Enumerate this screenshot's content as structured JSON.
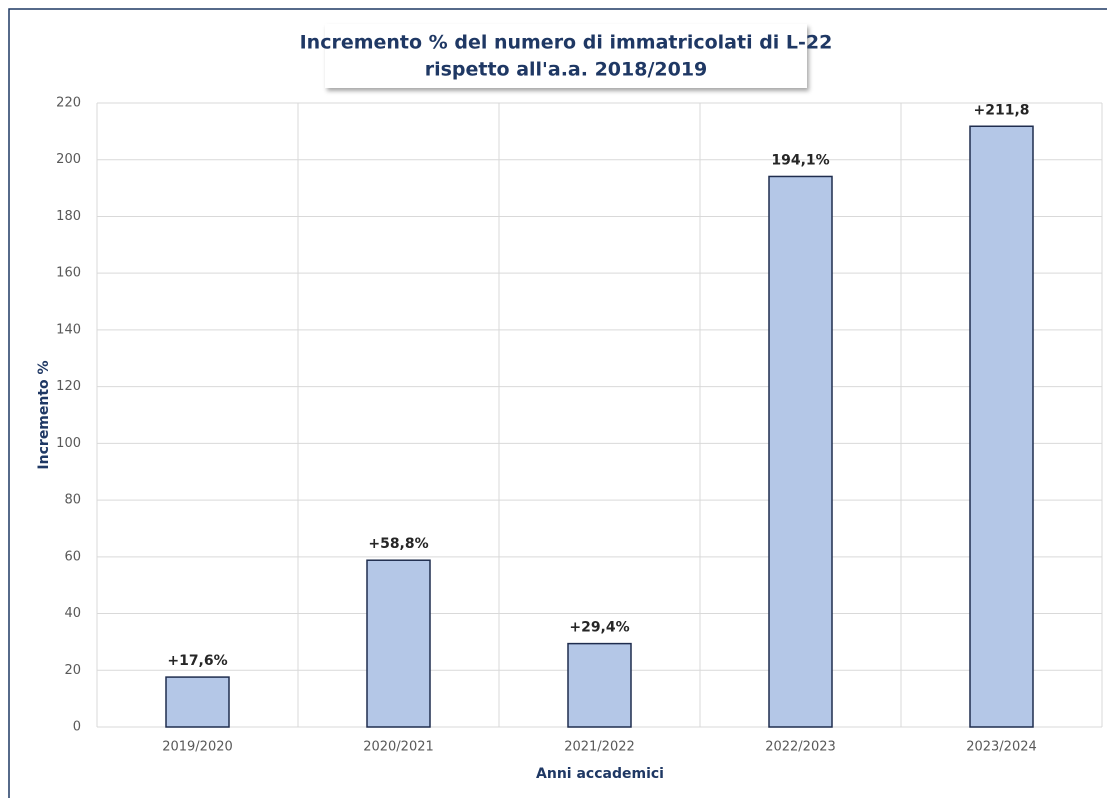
{
  "chart_data": {
    "type": "bar",
    "title": [
      "Incremento % del numero di immatricolati di L-22",
      "rispetto all'a.a. 2018/2019"
    ],
    "x_label": "Anni accademici",
    "y_label": "Incremento %",
    "categories": [
      "2019/2020",
      "2020/2021",
      "2021/2022",
      "2022/2023",
      "2023/2024"
    ],
    "values": [
      17.6,
      58.8,
      29.4,
      194.1,
      211.8
    ],
    "value_labels": [
      "+17,6%",
      "+58,8%",
      "+29,4%",
      "194,1%",
      "+211,8"
    ],
    "color": "#b4c7e7",
    "edge_color": "#1f2d4e",
    "ylim": [
      0,
      220
    ],
    "yticks": [
      0,
      20,
      40,
      60,
      80,
      100,
      120,
      140,
      160,
      180,
      200,
      220
    ],
    "grid": true
  }
}
